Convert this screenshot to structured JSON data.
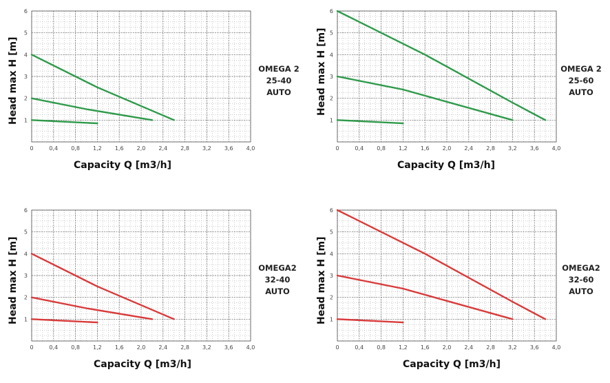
{
  "chart_data": [
    {
      "type": "line",
      "model_label": [
        "OMEGA 2",
        "25-40",
        "AUTO"
      ],
      "xlabel": "Capacity Q [m3/h]",
      "ylabel": "Head max H [m]",
      "xlim": [
        0,
        4.0
      ],
      "ylim": [
        0,
        6
      ],
      "x_ticks": [
        "0",
        "0,4",
        "0,8",
        "1,2",
        "1,6",
        "2,0",
        "2,4",
        "2,8",
        "3,2",
        "3,6",
        "4,0"
      ],
      "y_ticks": [
        "1",
        "2",
        "3",
        "4",
        "5",
        "6"
      ],
      "grid": true,
      "color": "#2e9a4a",
      "series": [
        {
          "points": [
            [
              0,
              4.0
            ],
            [
              1.2,
              2.5
            ],
            [
              2.6,
              1.0
            ]
          ]
        },
        {
          "points": [
            [
              0,
              2.0
            ],
            [
              1.0,
              1.5
            ],
            [
              2.2,
              1.0
            ]
          ]
        },
        {
          "points": [
            [
              0,
              1.0
            ],
            [
              1.2,
              0.85
            ]
          ]
        }
      ]
    },
    {
      "type": "line",
      "model_label": [
        "OMEGA 2",
        "25-60",
        "AUTO"
      ],
      "xlabel": "Capacity Q [m3/h]",
      "ylabel": "Head max H [m]",
      "xlim": [
        0,
        4.0
      ],
      "ylim": [
        0,
        6
      ],
      "x_ticks": [
        "0",
        "0,4",
        "0,8",
        "1,2",
        "1,6",
        "2,0",
        "2,4",
        "2,8",
        "3,2",
        "3,6",
        "4,0"
      ],
      "y_ticks": [
        "1",
        "2",
        "3",
        "4",
        "5",
        "6"
      ],
      "grid": true,
      "color": "#2e9a4a",
      "series": [
        {
          "points": [
            [
              0,
              6.0
            ],
            [
              1.6,
              4.0
            ],
            [
              3.2,
              1.8
            ],
            [
              3.8,
              1.0
            ]
          ]
        },
        {
          "points": [
            [
              0,
              3.0
            ],
            [
              1.2,
              2.4
            ],
            [
              3.2,
              1.0
            ]
          ]
        },
        {
          "points": [
            [
              0,
              1.0
            ],
            [
              1.2,
              0.85
            ]
          ]
        }
      ]
    },
    {
      "type": "line",
      "model_label": [
        "OMEGA2",
        "32-40",
        "AUTO"
      ],
      "xlabel": "Capacity Q [m3/h]",
      "ylabel": "Head max H [m]",
      "xlim": [
        0,
        4.0
      ],
      "ylim": [
        0,
        6
      ],
      "x_ticks": [
        "0",
        "0,4",
        "0,8",
        "1,2",
        "1,6",
        "2,0",
        "2,4",
        "2,8",
        "3,2",
        "3,6",
        "4,0"
      ],
      "y_ticks": [
        "1",
        "2",
        "3",
        "4",
        "5",
        "6"
      ],
      "grid": true,
      "color": "#d93a3a",
      "series": [
        {
          "points": [
            [
              0,
              4.0
            ],
            [
              1.2,
              2.5
            ],
            [
              2.6,
              1.0
            ]
          ]
        },
        {
          "points": [
            [
              0,
              2.0
            ],
            [
              1.0,
              1.5
            ],
            [
              2.2,
              1.0
            ]
          ]
        },
        {
          "points": [
            [
              0,
              1.0
            ],
            [
              1.2,
              0.85
            ]
          ]
        }
      ]
    },
    {
      "type": "line",
      "model_label": [
        "OMEGA2",
        "32-60",
        "AUTO"
      ],
      "xlabel": "Capacity Q [m3/h]",
      "ylabel": "Head max H [m]",
      "xlim": [
        0,
        4.0
      ],
      "ylim": [
        0,
        6
      ],
      "x_ticks": [
        "0",
        "0,4",
        "0,8",
        "1,2",
        "1,6",
        "2,0",
        "2,4",
        "2,8",
        "3,2",
        "3,6",
        "4,0"
      ],
      "y_ticks": [
        "1",
        "2",
        "3",
        "4",
        "5",
        "6"
      ],
      "grid": true,
      "color": "#d93a3a",
      "series": [
        {
          "points": [
            [
              0,
              6.0
            ],
            [
              1.6,
              4.0
            ],
            [
              3.2,
              1.8
            ],
            [
              3.8,
              1.0
            ]
          ]
        },
        {
          "points": [
            [
              0,
              3.0
            ],
            [
              1.2,
              2.4
            ],
            [
              3.2,
              1.0
            ]
          ]
        },
        {
          "points": [
            [
              0,
              1.0
            ],
            [
              1.2,
              0.85
            ]
          ]
        }
      ]
    }
  ]
}
